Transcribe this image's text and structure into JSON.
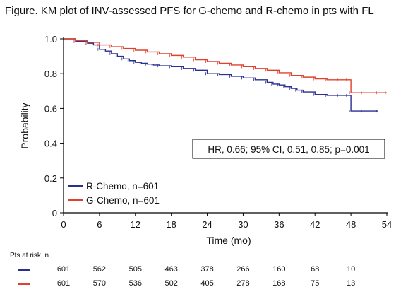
{
  "title": "Figure. KM plot of INV-assessed PFS for G-chemo and R-chemo in pts with FL",
  "colors": {
    "rchemo": "#2b2f8f",
    "gchemo": "#e0402e"
  },
  "chart_data": {
    "type": "line",
    "xlabel": "Time (mo)",
    "ylabel": "Probability",
    "xlim": [
      0,
      54
    ],
    "ylim": [
      0,
      1.0
    ],
    "x_ticks": [
      "0",
      "6",
      "12",
      "18",
      "24",
      "30",
      "36",
      "42",
      "48",
      "54"
    ],
    "y_ticks": [
      "0",
      "0.2",
      "0.4",
      "0.6",
      "0.8",
      "1.0"
    ],
    "grid": false,
    "legend": "bottom-left",
    "annotation": "HR, 0.66; 95% CI, 0.51, 0.85; p=0.001",
    "series": [
      {
        "name": "R-Chemo, n=601",
        "color": "#2b2f8f",
        "x": [
          0,
          2,
          4,
          5,
          6,
          7,
          8,
          9,
          10,
          11,
          12,
          13,
          14,
          15,
          16,
          18,
          20,
          22,
          24,
          26,
          28,
          30,
          32,
          34,
          35,
          36,
          37,
          38,
          39,
          40,
          42,
          44,
          46,
          47.5,
          48,
          50,
          52.5
        ],
        "y": [
          1.0,
          0.985,
          0.975,
          0.965,
          0.94,
          0.93,
          0.915,
          0.9,
          0.885,
          0.875,
          0.865,
          0.86,
          0.855,
          0.85,
          0.845,
          0.84,
          0.83,
          0.82,
          0.8,
          0.795,
          0.785,
          0.775,
          0.765,
          0.75,
          0.74,
          0.735,
          0.725,
          0.715,
          0.705,
          0.695,
          0.68,
          0.675,
          0.675,
          0.675,
          0.585,
          0.585,
          0.585
        ]
      },
      {
        "name": "G-Chemo, n=601",
        "color": "#e0402e",
        "x": [
          0,
          2,
          4,
          6,
          8,
          10,
          12,
          14,
          16,
          18,
          20,
          22,
          24,
          26,
          28,
          30,
          32,
          34,
          36,
          38,
          40,
          42,
          44,
          46,
          47.5,
          48,
          50,
          52.5,
          54
        ],
        "y": [
          1.0,
          0.99,
          0.98,
          0.965,
          0.955,
          0.945,
          0.935,
          0.925,
          0.915,
          0.905,
          0.895,
          0.88,
          0.87,
          0.86,
          0.85,
          0.84,
          0.83,
          0.82,
          0.805,
          0.79,
          0.78,
          0.77,
          0.765,
          0.765,
          0.765,
          0.69,
          0.69,
          0.69,
          0.69
        ]
      }
    ]
  },
  "risk_table": {
    "title": "Pts at risk, n",
    "times": [
      0,
      6,
      12,
      18,
      24,
      30,
      36,
      42,
      48
    ],
    "rows": [
      {
        "series": "R-Chemo, n=601",
        "color": "#2b2f8f",
        "values": [
          "601",
          "562",
          "505",
          "463",
          "378",
          "266",
          "160",
          "68",
          "10"
        ]
      },
      {
        "series": "G-Chemo, n=601",
        "color": "#e0402e",
        "values": [
          "601",
          "570",
          "536",
          "502",
          "405",
          "278",
          "168",
          "75",
          "13"
        ]
      }
    ]
  }
}
